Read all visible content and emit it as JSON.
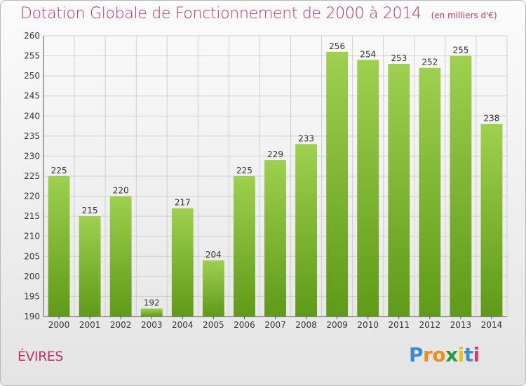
{
  "title": "Dotation Globale de Fonctionnement de 2000 à 2014",
  "unit": "(en milliers d'€)",
  "commune": "ÉVIRES",
  "logo": "Proxiti",
  "colors": {
    "title": "#c0306a",
    "bar_top": "#9fd04f",
    "bar_bottom": "#5f9a18",
    "grid": "#cfcfcf"
  },
  "chart_data": {
    "type": "bar",
    "title": "Dotation Globale de Fonctionnement de 2000 à 2014",
    "subtitle": "(en milliers d'€)",
    "xlabel": "",
    "ylabel": "",
    "categories": [
      "2000",
      "2001",
      "2002",
      "2003",
      "2004",
      "2005",
      "2006",
      "2007",
      "2008",
      "2009",
      "2010",
      "2011",
      "2012",
      "2013",
      "2014"
    ],
    "values": [
      225,
      215,
      220,
      192,
      217,
      204,
      225,
      229,
      233,
      256,
      254,
      253,
      252,
      255,
      238
    ],
    "ylim": [
      190,
      260
    ],
    "yticks": [
      190,
      195,
      200,
      205,
      210,
      215,
      220,
      225,
      230,
      235,
      240,
      245,
      250,
      255,
      260
    ],
    "grid": true,
    "data_labels": true
  }
}
